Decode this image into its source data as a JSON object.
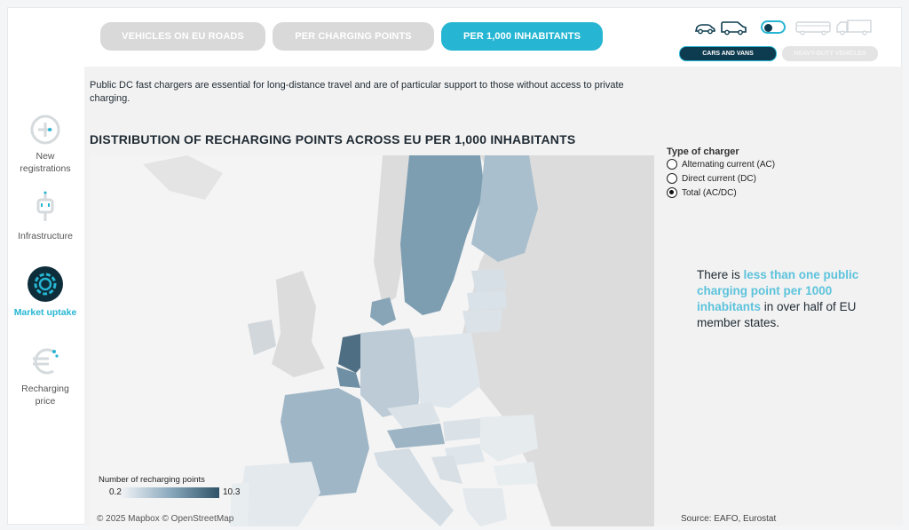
{
  "tabs": [
    {
      "label": "VEHICLES ON EU ROADS",
      "active": false
    },
    {
      "label": "PER CHARGING POINTS",
      "active": false
    },
    {
      "label": "PER 1,000 INHABITANTS",
      "active": true
    }
  ],
  "vehicle_toggle": {
    "cars_label": "CARS AND VANS",
    "heavy_label": "HEAVY-DUTY VEHICLES",
    "selected": "cars_and_vans"
  },
  "sidebar": {
    "items": [
      {
        "label": "New\nregistrations",
        "icon": "plus-circle-icon",
        "active": false
      },
      {
        "label": "Infrastructure",
        "icon": "charger-plug-icon",
        "active": false
      },
      {
        "label": "Market uptake",
        "icon": "gear-circle-icon",
        "active": true
      },
      {
        "label": "Recharging\nprice",
        "icon": "euro-icon",
        "active": false
      }
    ]
  },
  "intro_text": "Public DC fast chargers are essential for long-distance travel and are of particular support to those without access to private charging.",
  "map": {
    "title": "DISTRIBUTION OF RECHARGING POINTS ACROSS EU PER 1,000 INHABITANTS",
    "legend_title": "Number of recharging points",
    "legend_min": "0.2",
    "legend_max": "10.3",
    "credit": "© 2025 Mapbox © OpenStreetMap"
  },
  "filter": {
    "title": "Type of charger",
    "options": [
      {
        "label": "Alternating current (AC)",
        "checked": false
      },
      {
        "label": "Direct current (DC)",
        "checked": false
      },
      {
        "label": "Total (AC/DC)",
        "checked": true
      }
    ]
  },
  "callout": {
    "prefix": "There is ",
    "highlight": "less than one public charging point per 1000 inhabitants",
    "suffix": " in over half of EU member states."
  },
  "source": "Source: EAFO, Eurostat",
  "colors": {
    "accent": "#26b6d3",
    "dark": "#0d3b4f",
    "highlight_text": "#5cc3dc"
  }
}
